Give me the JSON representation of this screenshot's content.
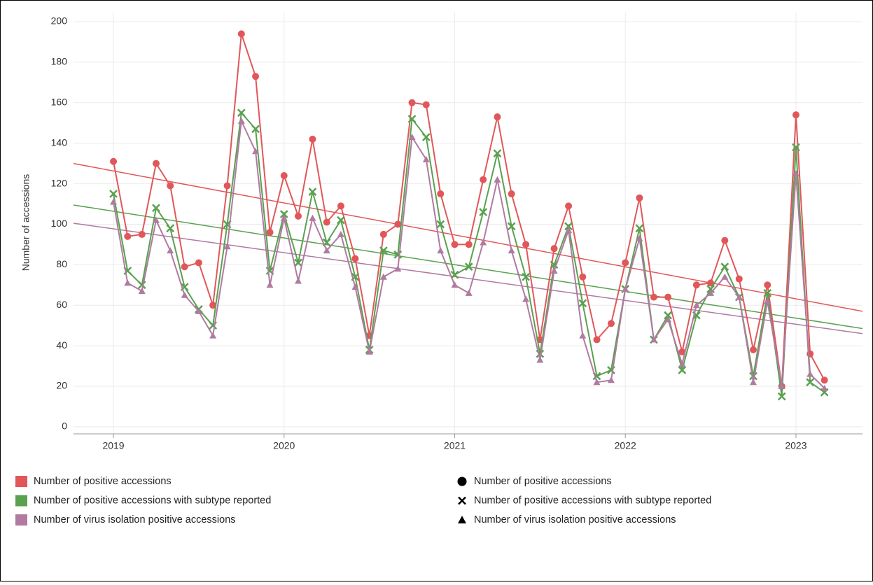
{
  "chart_data": {
    "type": "line",
    "y_label": "Number of accessions",
    "x": [
      2019,
      2019.083,
      2019.167,
      2019.25,
      2019.333,
      2019.417,
      2019.5,
      2019.583,
      2019.667,
      2019.75,
      2019.833,
      2019.917,
      2020,
      2020.083,
      2020.167,
      2020.25,
      2020.333,
      2020.417,
      2020.5,
      2020.583,
      2020.667,
      2020.75,
      2020.833,
      2020.917,
      2021,
      2021.083,
      2021.167,
      2021.25,
      2021.333,
      2021.417,
      2021.5,
      2021.583,
      2021.667,
      2021.75,
      2021.833,
      2021.917,
      2022,
      2022.083,
      2022.167,
      2022.25,
      2022.333,
      2022.417,
      2022.5,
      2022.583,
      2022.667,
      2022.75,
      2022.833,
      2022.917,
      2023,
      2023.083,
      2023.167
    ],
    "xlim": [
      2018.766,
      2023.39
    ],
    "xticks": [
      2019,
      2020,
      2021,
      2022,
      2023
    ],
    "ylim": [
      -3.5,
      204.5
    ],
    "yticks": [
      0,
      20,
      40,
      60,
      80,
      100,
      120,
      140,
      160,
      180,
      200
    ],
    "grid": true,
    "series": [
      {
        "name": "Number of positive accessions",
        "color": "#e15759",
        "marker": "circle",
        "trend": [
          130,
          57
        ],
        "values": [
          131,
          94,
          95,
          130,
          119,
          79,
          81,
          60,
          119,
          194,
          173,
          96,
          124,
          104,
          142,
          101,
          109,
          83,
          45,
          95,
          100,
          160,
          159,
          115,
          90,
          90,
          122,
          153,
          115,
          90,
          43,
          88,
          109,
          74,
          43,
          51,
          81,
          113,
          64,
          64,
          37,
          70,
          71,
          92,
          73,
          38,
          70,
          20,
          154,
          36,
          23
        ]
      },
      {
        "name": "Number of positive accessions with subtype reported",
        "color": "#59a14f",
        "marker": "cross",
        "trend": [
          109.5,
          48.5
        ],
        "values": [
          115,
          77,
          70,
          108,
          98,
          69,
          58,
          50,
          100,
          155,
          147,
          77,
          105,
          81,
          116,
          91,
          102,
          74,
          38,
          87,
          85,
          152,
          143,
          100,
          75,
          79,
          106,
          135,
          99,
          74,
          36,
          80,
          99,
          61,
          25,
          28,
          68,
          98,
          43,
          55,
          28,
          55,
          68,
          79,
          64,
          25,
          66,
          15,
          138,
          22,
          17
        ]
      },
      {
        "name": "Number of virus isolation positive accessions",
        "color": "#b07aa1",
        "marker": "triangle",
        "trend": [
          100.5,
          46
        ],
        "values": [
          111,
          71,
          67,
          102,
          87,
          65,
          57,
          45,
          89,
          151,
          136,
          70,
          103,
          72,
          103,
          87,
          95,
          69,
          37,
          74,
          78,
          143,
          132,
          87,
          70,
          66,
          91,
          122,
          87,
          63,
          33,
          77,
          97,
          45,
          22,
          23,
          68,
          93,
          43,
          53,
          31,
          60,
          66,
          74,
          64,
          22,
          62,
          20,
          125,
          26,
          19
        ]
      }
    ]
  }
}
